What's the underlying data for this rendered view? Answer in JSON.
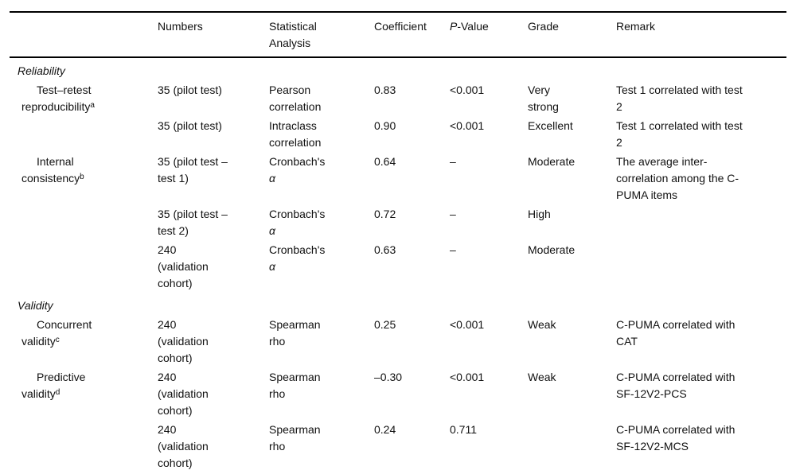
{
  "table": {
    "columns": [
      {
        "label": ""
      },
      {
        "label": "Numbers"
      },
      {
        "label": "Statistical\nAnalysis"
      },
      {
        "label": "Coefficient"
      },
      {
        "label": "P-Value",
        "italic_first": true
      },
      {
        "label": "Grade"
      },
      {
        "label": "Remark"
      }
    ],
    "rows": [
      {
        "type": "section",
        "label": "Reliability"
      },
      {
        "type": "data",
        "label": "Test–retest\nreproducibility",
        "sup": "a",
        "numbers": "35 (pilot test)",
        "analysis": "Pearson\ncorrelation",
        "coefficient": "0.83",
        "p_value": "<0.001",
        "grade": "Very\nstrong",
        "remark": "Test 1 correlated with test\n2"
      },
      {
        "type": "data",
        "label": "",
        "sup": "",
        "numbers": "35 (pilot test)",
        "analysis": "Intraclass\ncorrelation",
        "coefficient": "0.90",
        "p_value": "<0.001",
        "grade": "Excellent",
        "remark": "Test 1 correlated with test\n2"
      },
      {
        "type": "data",
        "label": "Internal\nconsistency",
        "sup": "b",
        "numbers": "35 (pilot test –\ntest 1)",
        "analysis": "Cronbach's",
        "analysis_symbol": "α",
        "coefficient": "0.64",
        "p_value": "–",
        "grade": "Moderate",
        "remark": "The average inter-\ncorrelation among the C-\nPUMA items"
      },
      {
        "type": "data",
        "label": "",
        "sup": "",
        "numbers": "35 (pilot test –\ntest 2)",
        "analysis": "Cronbach's",
        "analysis_symbol": "α",
        "coefficient": "0.72",
        "p_value": "–",
        "grade": "High",
        "remark": ""
      },
      {
        "type": "data",
        "label": "",
        "sup": "",
        "numbers": "240\n(validation\ncohort)",
        "analysis": "Cronbach's",
        "analysis_symbol": "α",
        "coefficient": "0.63",
        "p_value": "–",
        "grade": "Moderate",
        "remark": ""
      },
      {
        "type": "section",
        "label": "Validity"
      },
      {
        "type": "data",
        "label": "Concurrent\nvalidity",
        "sup": "c",
        "numbers": "240\n(validation\ncohort)",
        "analysis": "Spearman\nrho",
        "coefficient": "0.25",
        "p_value": "<0.001",
        "grade": "Weak",
        "remark": "C-PUMA correlated with\nCAT"
      },
      {
        "type": "data",
        "label": "Predictive\nvalidity",
        "sup": "d",
        "numbers": "240\n(validation\ncohort)",
        "analysis": "Spearman\nrho",
        "coefficient": "–0.30",
        "p_value": "<0.001",
        "grade": "Weak",
        "remark": "C-PUMA correlated with\nSF-12V2-PCS"
      },
      {
        "type": "data",
        "label": "",
        "sup": "",
        "numbers": "240\n(validation\ncohort)",
        "analysis": "Spearman\nrho",
        "coefficient": "0.24",
        "p_value": "0.711",
        "grade": "",
        "remark": "C-PUMA correlated with\nSF-12V2-MCS"
      }
    ]
  }
}
